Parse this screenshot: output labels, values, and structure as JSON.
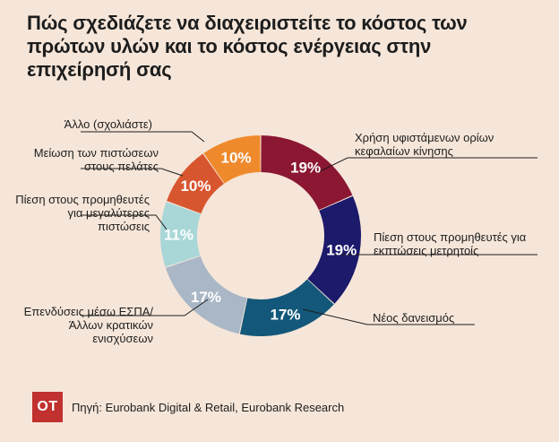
{
  "title": "Πώς σχεδιάζετε να διαχειριστείτε το κόστος των πρώτων υλών και το κόστος ενέργειας στην επιχείρησή σας",
  "footer": {
    "logo_text": "OT",
    "source": "Πηγή: Eurobank Digital & Retail, Eurobank Research"
  },
  "colors": {
    "background": "#f6e6d9",
    "logo": "#c0312f"
  },
  "chart_data": {
    "type": "pie",
    "donut": true,
    "unit": "%",
    "slices": [
      {
        "label": "Χρήση υφιστάμενων ορίων κεφαλαίων κίνησης",
        "value": 19,
        "display": "19%",
        "color": "#8b1732"
      },
      {
        "label": "Πίεση στους προμηθευτές για εκπτώσεις μετρητοίς",
        "value": 19,
        "display": "19%",
        "color": "#1c1a6b"
      },
      {
        "label": "Νέος δανεισμός",
        "value": 17,
        "display": "17%",
        "color": "#13587a"
      },
      {
        "label": "Επενδύσεις μέσω ΕΣΠΑ/Άλλων κρατικών ενισχύσεων",
        "value": 17,
        "display": "17%",
        "color": "#a9b7c6"
      },
      {
        "label": "Πίεση στους προμηθευτές για μεγαλύτερες πιστώσεις",
        "value": 11,
        "display": "11%",
        "color": "#a9d7d8"
      },
      {
        "label": "Μείωση των πιστώσεων στους πελάτες",
        "value": 10,
        "display": "10%",
        "color": "#d8562f"
      },
      {
        "label": "Άλλο (σχολιάστε)",
        "value": 10,
        "display": "10%",
        "color": "#ef8a2c"
      }
    ]
  }
}
